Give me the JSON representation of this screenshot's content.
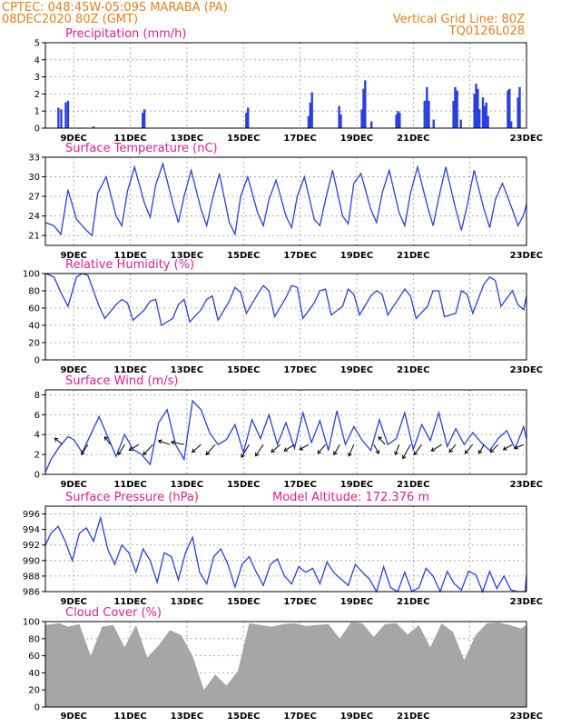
{
  "header": {
    "line1": "CPTEC:    048:45W-05:09S   MARABA (PA)",
    "line2": "08DEC2020 80Z (GMT)",
    "grid_note": "Vertical Grid Line: 80Z",
    "run_id": "TQ0126L028"
  },
  "date_ticks": [
    "9DEC",
    "11DEC",
    "13DEC",
    "15DEC",
    "17DEC",
    "19DEC",
    "21DEC",
    "23DEC"
  ],
  "chart_data": [
    {
      "id": "precip",
      "type": "bar",
      "title": "Precipitation  (mm/h)",
      "ylim": [
        0,
        5
      ],
      "yticks": [
        0,
        1,
        2,
        3,
        4,
        5
      ],
      "x_unit": "days since 08DEC2020 08Z",
      "x": [
        0.46,
        0.56,
        0.72,
        0.8,
        1.7,
        3.44,
        3.5,
        7.1,
        7.16,
        9.3,
        9.36,
        9.42,
        10.38,
        10.44,
        11.18,
        11.24,
        11.3,
        11.52,
        12.4,
        12.46,
        12.52,
        13.4,
        13.48,
        13.55,
        13.72,
        14.42,
        14.48,
        14.55,
        14.68,
        15.16,
        15.22,
        15.28,
        15.34,
        15.46,
        15.52,
        15.58,
        15.64,
        16.34,
        16.4,
        16.46,
        16.7,
        16.76
      ],
      "values": [
        1.2,
        1.1,
        1.5,
        1.6,
        0.1,
        0.9,
        1.1,
        0.9,
        1.2,
        0.7,
        1.5,
        2.1,
        1.3,
        0.8,
        1.1,
        2.3,
        2.8,
        0.4,
        0.8,
        1.0,
        0.9,
        1.6,
        2.4,
        1.6,
        0.5,
        1.6,
        2.4,
        2.2,
        0.5,
        2.0,
        2.6,
        2.3,
        1.1,
        1.8,
        1.3,
        1.5,
        0.7,
        2.2,
        2.3,
        0.4,
        1.8,
        2.4
      ]
    },
    {
      "id": "temp",
      "type": "line",
      "title": "Surface Temperature (nC)",
      "ylim": [
        19.5,
        33
      ],
      "yticks": [
        21,
        24,
        27,
        30,
        33
      ],
      "x_unit": "days since 08DEC2020 08Z",
      "x": [
        0,
        0.3,
        0.55,
        0.8,
        1.1,
        1.45,
        1.65,
        1.85,
        2.15,
        2.5,
        2.7,
        2.9,
        3.15,
        3.5,
        3.7,
        3.9,
        4.15,
        4.5,
        4.7,
        4.9,
        5.15,
        5.5,
        5.7,
        5.9,
        6.15,
        6.5,
        6.7,
        6.9,
        7.15,
        7.5,
        7.7,
        7.9,
        8.15,
        8.5,
        8.7,
        8.9,
        9.15,
        9.5,
        9.7,
        9.9,
        10.15,
        10.5,
        10.7,
        10.9,
        11.15,
        11.5,
        11.7,
        11.9,
        12.15,
        12.5,
        12.7,
        12.9,
        13.15,
        13.5,
        13.7,
        13.9,
        14.15,
        14.5,
        14.7,
        14.9,
        15.15,
        15.5,
        15.7,
        15.9,
        16.15,
        16.5,
        16.7,
        16.9,
        17
      ],
      "values": [
        23.0,
        22.5,
        21.2,
        28.0,
        23.5,
        21.8,
        21.0,
        27.5,
        30.0,
        24.0,
        22.5,
        27.8,
        31.5,
        26.0,
        23.8,
        28.8,
        32.0,
        26.0,
        23.0,
        27.0,
        31.0,
        25.0,
        22.5,
        26.5,
        30.5,
        23.0,
        21.2,
        27.0,
        30.0,
        24.5,
        22.5,
        26.5,
        29.5,
        24.0,
        22.2,
        27.0,
        30.0,
        23.5,
        22.5,
        26.5,
        31.0,
        24.0,
        22.8,
        29.0,
        30.5,
        25.0,
        23.0,
        27.5,
        31.0,
        24.5,
        22.5,
        27.5,
        31.5,
        25.5,
        22.5,
        26.8,
        31.5,
        25.0,
        21.8,
        25.5,
        31.0,
        25.0,
        22.2,
        26.5,
        29.0,
        25.0,
        22.5,
        24.2,
        25.8
      ]
    },
    {
      "id": "rh",
      "type": "line",
      "title": "Relative Humidity (%)",
      "ylim": [
        0,
        100
      ],
      "yticks": [
        0,
        20,
        40,
        60,
        80,
        100
      ],
      "x_unit": "days since 08DEC2020 08Z",
      "x": [
        0,
        0.3,
        0.55,
        0.8,
        1.1,
        1.3,
        1.5,
        1.7,
        1.9,
        2.1,
        2.5,
        2.7,
        2.9,
        3.1,
        3.5,
        3.7,
        3.9,
        4.1,
        4.5,
        4.7,
        4.9,
        5.1,
        5.5,
        5.7,
        5.9,
        6.1,
        6.5,
        6.7,
        6.9,
        7.1,
        7.5,
        7.7,
        7.9,
        8.1,
        8.5,
        8.7,
        8.9,
        9.1,
        9.5,
        9.7,
        9.9,
        10.1,
        10.5,
        10.7,
        10.9,
        11.1,
        11.5,
        11.7,
        11.9,
        12.1,
        12.5,
        12.7,
        12.9,
        13.1,
        13.5,
        13.7,
        13.9,
        14.1,
        14.5,
        14.7,
        14.9,
        15.1,
        15.5,
        15.7,
        15.9,
        16.1,
        16.5,
        16.7,
        16.9,
        17
      ],
      "values": [
        100,
        96,
        78,
        62,
        96,
        100,
        98,
        80,
        62,
        48,
        64,
        70,
        66,
        46,
        58,
        68,
        70,
        40,
        48,
        64,
        70,
        44,
        58,
        70,
        74,
        46,
        68,
        84,
        78,
        54,
        76,
        86,
        80,
        50,
        72,
        86,
        84,
        48,
        66,
        80,
        82,
        52,
        62,
        82,
        76,
        52,
        74,
        80,
        76,
        52,
        72,
        82,
        74,
        48,
        62,
        80,
        80,
        50,
        54,
        80,
        76,
        54,
        88,
        96,
        92,
        62,
        80,
        64,
        58,
        74
      ]
    },
    {
      "id": "wind",
      "type": "line",
      "title": "Surface Wind  (m/s)",
      "ylim": [
        0,
        8.5
      ],
      "yticks": [
        0,
        2,
        4,
        6,
        8
      ],
      "x_unit": "days since 08DEC2020 08Z",
      "x": [
        0,
        0.2,
        0.5,
        0.8,
        1.0,
        1.3,
        1.6,
        1.9,
        2.2,
        2.5,
        2.8,
        3.1,
        3.4,
        3.7,
        4.0,
        4.3,
        4.6,
        4.9,
        5.2,
        5.5,
        5.8,
        6.1,
        6.4,
        6.7,
        7.0,
        7.3,
        7.6,
        7.9,
        8.2,
        8.5,
        8.8,
        9.1,
        9.4,
        9.7,
        10.0,
        10.3,
        10.6,
        10.9,
        11.2,
        11.5,
        11.8,
        12.1,
        12.4,
        12.7,
        13.0,
        13.3,
        13.6,
        13.9,
        14.2,
        14.5,
        14.8,
        15.1,
        15.4,
        15.7,
        16.0,
        16.3,
        16.6,
        16.9,
        17
      ],
      "values": [
        0.2,
        1.5,
        2.8,
        3.8,
        3.5,
        2.2,
        4.0,
        5.8,
        3.8,
        1.8,
        4.0,
        2.5,
        2.0,
        1.0,
        5.2,
        6.5,
        3.0,
        1.5,
        7.4,
        6.5,
        4.2,
        3.0,
        3.5,
        5.0,
        2.2,
        5.5,
        3.6,
        6.0,
        3.0,
        5.2,
        2.6,
        6.2,
        3.2,
        5.4,
        2.4,
        6.4,
        3.0,
        4.8,
        3.4,
        2.4,
        5.5,
        3.0,
        3.6,
        6.2,
        2.5,
        5.0,
        3.4,
        6.2,
        2.8,
        4.6,
        3.0,
        4.2,
        3.2,
        2.4,
        3.6,
        4.4,
        2.6,
        4.8,
        3.6
      ],
      "vectors": [
        {
          "x": 0.6,
          "u": -1.2,
          "v": 1.0
        },
        {
          "x": 1.5,
          "u": -1.0,
          "v": -1.6
        },
        {
          "x": 2.3,
          "u": -0.9,
          "v": 1.2
        },
        {
          "x": 2.8,
          "u": -1.0,
          "v": -1.6
        },
        {
          "x": 3.3,
          "u": -1.5,
          "v": -0.9
        },
        {
          "x": 3.8,
          "u": -1.5,
          "v": -1.6
        },
        {
          "x": 4.4,
          "u": -1.8,
          "v": 0.6
        },
        {
          "x": 4.9,
          "u": -2.0,
          "v": 0.4
        },
        {
          "x": 5.5,
          "u": -1.4,
          "v": -1.2
        },
        {
          "x": 6.0,
          "u": -1.4,
          "v": -1.6
        },
        {
          "x": 7.2,
          "u": -1.2,
          "v": -2.0
        },
        {
          "x": 7.7,
          "u": -1.2,
          "v": -1.8
        },
        {
          "x": 8.3,
          "u": -1.4,
          "v": -1.2
        },
        {
          "x": 8.8,
          "u": -1.6,
          "v": -1.0
        },
        {
          "x": 9.3,
          "u": -1.4,
          "v": -0.8
        },
        {
          "x": 9.9,
          "u": -1.2,
          "v": -1.4
        },
        {
          "x": 10.4,
          "u": -0.9,
          "v": -1.6
        },
        {
          "x": 10.9,
          "u": -0.8,
          "v": -1.8
        },
        {
          "x": 11.6,
          "u": 0.8,
          "v": -1.4
        },
        {
          "x": 12.0,
          "u": -1.0,
          "v": 1.2
        },
        {
          "x": 12.5,
          "u": -0.6,
          "v": -1.6
        },
        {
          "x": 12.9,
          "u": -1.2,
          "v": -2.2
        },
        {
          "x": 13.3,
          "u": -1.2,
          "v": -1.6
        },
        {
          "x": 14.0,
          "u": -1.6,
          "v": -1.0
        },
        {
          "x": 14.5,
          "u": -1.0,
          "v": -1.2
        },
        {
          "x": 15.1,
          "u": -1.2,
          "v": -1.4
        },
        {
          "x": 15.5,
          "u": -0.8,
          "v": -1.4
        },
        {
          "x": 16.0,
          "u": -1.2,
          "v": -1.2
        },
        {
          "x": 16.5,
          "u": -1.4,
          "v": -0.8
        },
        {
          "x": 16.9,
          "u": -1.4,
          "v": -0.6
        }
      ]
    },
    {
      "id": "pressure",
      "type": "line",
      "title": "Surface Pressure (hPa)",
      "annotation": "Model Altitude: 172.376 m",
      "ylim": [
        986,
        997
      ],
      "yticks": [
        986,
        988,
        990,
        992,
        994,
        996
      ],
      "x_unit": "days since 08DEC2020 08Z",
      "x": [
        0,
        0.2,
        0.45,
        0.7,
        0.95,
        1.2,
        1.45,
        1.7,
        1.95,
        2.2,
        2.45,
        2.7,
        2.95,
        3.2,
        3.45,
        3.7,
        3.95,
        4.2,
        4.45,
        4.7,
        4.95,
        5.2,
        5.45,
        5.7,
        5.95,
        6.2,
        6.45,
        6.7,
        6.95,
        7.2,
        7.45,
        7.7,
        7.95,
        8.2,
        8.45,
        8.7,
        8.95,
        9.2,
        9.45,
        9.7,
        9.95,
        10.2,
        10.45,
        10.7,
        10.95,
        11.2,
        11.45,
        11.7,
        11.95,
        12.2,
        12.45,
        12.7,
        12.95,
        13.2,
        13.45,
        13.7,
        13.95,
        14.2,
        14.45,
        14.7,
        14.95,
        15.2,
        15.45,
        15.7,
        15.95,
        16.2,
        16.45,
        16.7,
        16.95,
        17
      ],
      "values": [
        992.0,
        993.5,
        994.4,
        992.5,
        990.0,
        993.5,
        994.2,
        992.5,
        995.5,
        991.5,
        989.5,
        992.0,
        991.0,
        988.5,
        991.5,
        990.0,
        987.2,
        991.0,
        990.5,
        987.5,
        991.0,
        993.0,
        988.5,
        987.0,
        990.5,
        991.5,
        989.5,
        986.6,
        989.5,
        990.5,
        988.5,
        986.8,
        989.5,
        990.2,
        988.0,
        987.0,
        989.2,
        988.5,
        989.0,
        987.0,
        989.8,
        988.4,
        987.6,
        986.8,
        989.5,
        988.5,
        987.6,
        986.0,
        989.2,
        986.5,
        985.8,
        988.5,
        986.0,
        986.5,
        989.0,
        988.0,
        985.8,
        988.6,
        987.0,
        986.2,
        988.6,
        988.2,
        986.0,
        988.6,
        986.4,
        988.0,
        986.2,
        985.8,
        985.8,
        988.2
      ]
    },
    {
      "id": "cloud",
      "type": "area",
      "title": "Cloud Cover (%)",
      "ylim": [
        0,
        100
      ],
      "yticks": [
        0,
        20,
        40,
        60,
        80,
        100
      ],
      "x_unit": "days since 08DEC2020 08Z",
      "x": [
        0,
        0.5,
        0.8,
        1.2,
        1.6,
        2.0,
        2.4,
        2.8,
        3.2,
        3.6,
        4.0,
        4.4,
        4.8,
        5.2,
        5.6,
        6.0,
        6.4,
        6.8,
        7.2,
        7.6,
        8.0,
        8.4,
        8.8,
        9.2,
        9.6,
        10.0,
        10.4,
        10.8,
        11.2,
        11.6,
        12.0,
        12.4,
        12.8,
        13.2,
        13.6,
        14.0,
        14.4,
        14.8,
        15.2,
        15.6,
        16.0,
        16.4,
        16.8,
        17
      ],
      "values": [
        96,
        98,
        94,
        97,
        60,
        94,
        96,
        70,
        96,
        58,
        72,
        90,
        84,
        60,
        20,
        38,
        25,
        42,
        98,
        96,
        94,
        97,
        98,
        95,
        96,
        97,
        80,
        99,
        98,
        82,
        97,
        98,
        85,
        96,
        70,
        98,
        88,
        55,
        84,
        98,
        99,
        96,
        92,
        96
      ]
    }
  ]
}
